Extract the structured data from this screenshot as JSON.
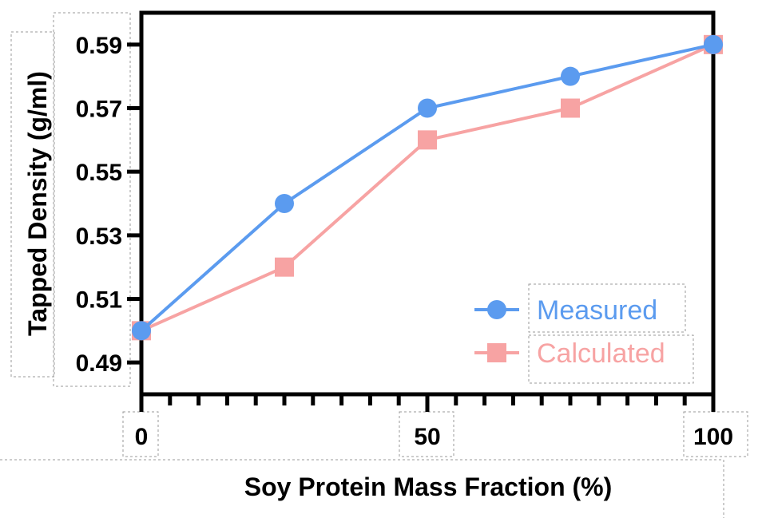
{
  "chart_data": {
    "type": "line",
    "xlabel": "Soy Protein Mass Fraction  (%)",
    "ylabel": "Tapped Density (g/ml)",
    "x": [
      0,
      25,
      50,
      75,
      100
    ],
    "xlim": [
      0,
      100
    ],
    "ylim": [
      0.48,
      0.6
    ],
    "x_ticks": [
      "0",
      "50",
      "100"
    ],
    "y_ticks": [
      "0.49",
      "0.51",
      "0.53",
      "0.55",
      "0.57",
      "0.59"
    ],
    "series": [
      {
        "name": "Measured",
        "marker": "circle",
        "color": "#5b9bef",
        "values": [
          0.5,
          0.54,
          0.57,
          0.58,
          0.59
        ]
      },
      {
        "name": "Calculated",
        "marker": "square",
        "color": "#f7a3a3",
        "values": [
          0.5,
          0.52,
          0.56,
          0.57,
          0.59
        ]
      }
    ],
    "legend_position": "bottom-right",
    "grid": false
  }
}
